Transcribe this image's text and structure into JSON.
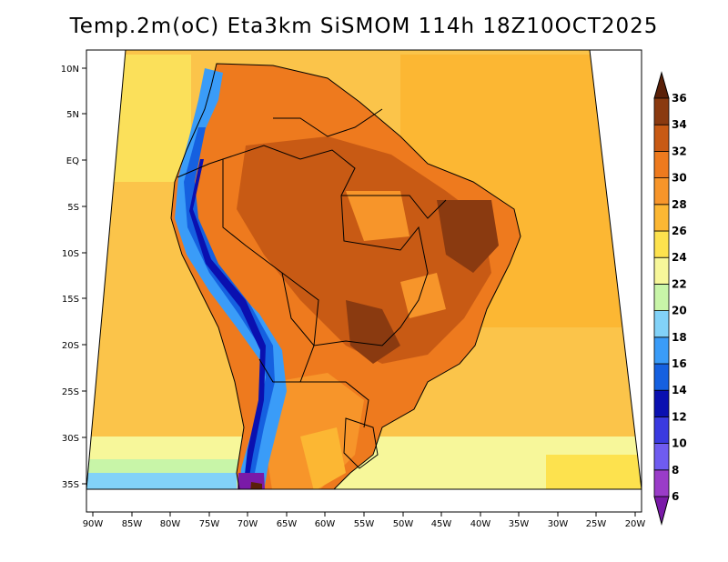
{
  "title": "Temp.2m(oC) Eta3km SiSMOM 114h 18Z10OCT2025",
  "lat_labels": [
    "10N",
    "5N",
    "EQ",
    "5S",
    "10S",
    "15S",
    "20S",
    "25S",
    "30S",
    "35S"
  ],
  "lon_labels": [
    "90W",
    "85W",
    "80W",
    "75W",
    "70W",
    "65W",
    "60W",
    "55W",
    "50W",
    "45W",
    "40W",
    "35W",
    "30W",
    "25W",
    "20W"
  ],
  "colorbar": {
    "levels": [
      "6",
      "8",
      "10",
      "12",
      "14",
      "16",
      "18",
      "20",
      "22",
      "24",
      "26",
      "28",
      "30",
      "32",
      "34",
      "36"
    ],
    "colors": [
      "#7a1aa8",
      "#9a3cc8",
      "#6f5cf0",
      "#3a3ae0",
      "#0a10b0",
      "#1560e0",
      "#3a9cf8",
      "#82d2f8",
      "#c8f5a8",
      "#f7f79a",
      "#fde24e",
      "#fcb733",
      "#f7952a",
      "#ee7a1e",
      "#c85a14",
      "#8a3a10",
      "#5a2008"
    ]
  }
}
